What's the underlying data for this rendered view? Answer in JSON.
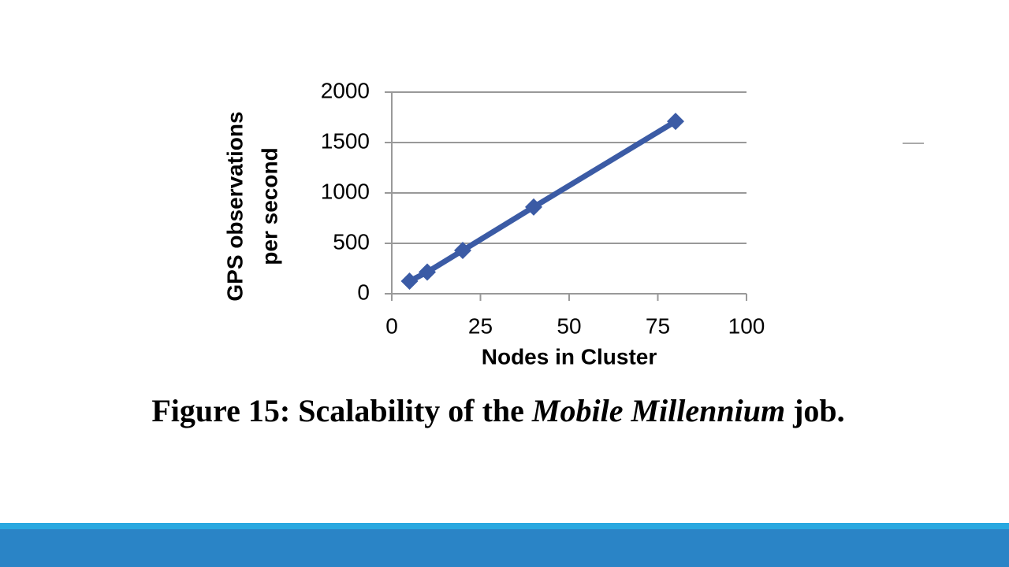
{
  "chart_data": {
    "type": "line",
    "xlabel": "Nodes in Cluster",
    "ylabel": [
      "GPS observations",
      "per second"
    ],
    "x": [
      5,
      10,
      20,
      40,
      80
    ],
    "series": [
      {
        "name": "GPS observations per second",
        "color": "#3b5ba5",
        "values": [
          125,
          215,
          430,
          860,
          1710
        ]
      }
    ],
    "xlim": [
      0,
      100
    ],
    "xticks": [
      0,
      25,
      50,
      75,
      100
    ],
    "ylim": [
      0,
      2000
    ],
    "yticks": [
      0,
      500,
      1000,
      1500,
      2000
    ],
    "grid": true
  },
  "caption": {
    "prefix": "Figure 15: Scalability of the",
    "italic": "Mobile Millennium",
    "suffix": "job."
  }
}
